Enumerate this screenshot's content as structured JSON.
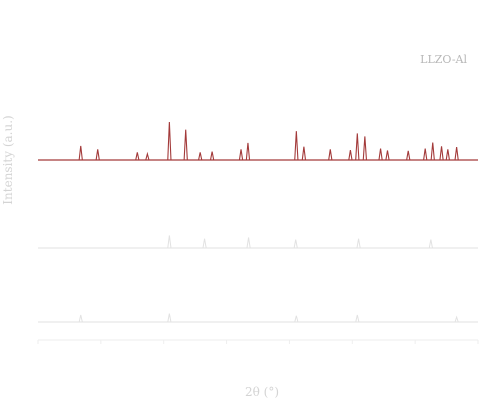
{
  "chart_data": {
    "type": "line",
    "xlabel": "2θ (°)",
    "ylabel": "Intensity (a.u.)",
    "x_range": [
      10,
      80
    ],
    "y_range": [
      0,
      1
    ],
    "grid": false,
    "colors": {
      "top_pattern": "#a33a3a",
      "faded_patterns": "#e2e2e2"
    },
    "legend": [
      "LLZO-Al",
      "",
      ""
    ],
    "legend_placement": "top-right",
    "series": [
      {
        "name": "LLZO-Al",
        "peaks": [
          {
            "x": 16.8,
            "y": 0.37
          },
          {
            "x": 19.5,
            "y": 0.28
          },
          {
            "x": 25.8,
            "y": 0.2
          },
          {
            "x": 27.4,
            "y": 0.16
          },
          {
            "x": 30.9,
            "y": 1.0
          },
          {
            "x": 33.5,
            "y": 0.8
          },
          {
            "x": 35.8,
            "y": 0.2
          },
          {
            "x": 37.7,
            "y": 0.22
          },
          {
            "x": 42.3,
            "y": 0.28
          },
          {
            "x": 43.4,
            "y": 0.45
          },
          {
            "x": 51.1,
            "y": 0.76
          },
          {
            "x": 52.3,
            "y": 0.35
          },
          {
            "x": 56.5,
            "y": 0.28
          },
          {
            "x": 59.7,
            "y": 0.26
          },
          {
            "x": 60.8,
            "y": 0.7
          },
          {
            "x": 62.0,
            "y": 0.62
          },
          {
            "x": 64.5,
            "y": 0.3
          },
          {
            "x": 65.6,
            "y": 0.25
          },
          {
            "x": 68.9,
            "y": 0.24
          },
          {
            "x": 71.6,
            "y": 0.3
          },
          {
            "x": 72.8,
            "y": 0.46
          },
          {
            "x": 74.2,
            "y": 0.36
          },
          {
            "x": 75.2,
            "y": 0.28
          },
          {
            "x": 76.6,
            "y": 0.34
          }
        ]
      },
      {
        "name": "",
        "peaks": [
          {
            "x": 30.9,
            "y": 0.3
          },
          {
            "x": 36.5,
            "y": 0.22
          },
          {
            "x": 43.5,
            "y": 0.25
          },
          {
            "x": 51.0,
            "y": 0.2
          },
          {
            "x": 61.0,
            "y": 0.22
          },
          {
            "x": 72.5,
            "y": 0.2
          }
        ]
      },
      {
        "name": "",
        "peaks": [
          {
            "x": 16.8,
            "y": 0.2
          },
          {
            "x": 30.9,
            "y": 0.24
          },
          {
            "x": 51.1,
            "y": 0.18
          },
          {
            "x": 60.8,
            "y": 0.2
          },
          {
            "x": 76.6,
            "y": 0.14
          }
        ]
      }
    ]
  }
}
